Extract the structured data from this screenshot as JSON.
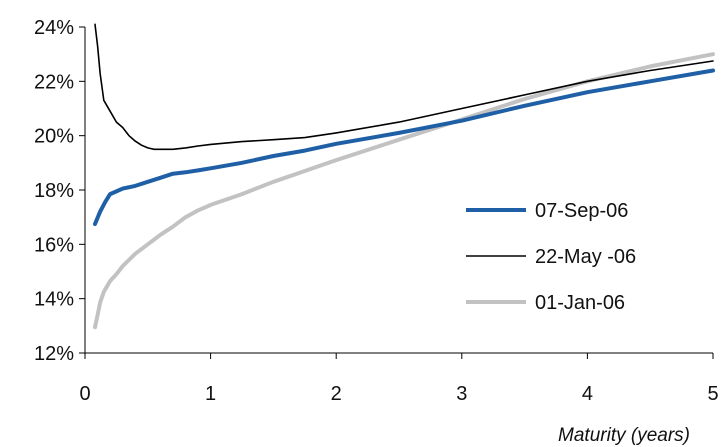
{
  "chart_data": {
    "type": "line",
    "title": "",
    "xlabel": "Maturity (years)",
    "ylabel": "",
    "xlim": [
      0,
      5
    ],
    "ylim": [
      12,
      24
    ],
    "x_ticks": [
      0,
      1,
      2,
      3,
      4,
      5
    ],
    "x_tick_labels": [
      "0",
      "1",
      "2",
      "3",
      "4",
      "5"
    ],
    "y_ticks": [
      12,
      14,
      16,
      18,
      20,
      22,
      24
    ],
    "y_tick_labels": [
      "12%",
      "14%",
      "16%",
      "18%",
      "20%",
      "22%",
      "24%"
    ],
    "grid": false,
    "legend_position": "right",
    "series": [
      {
        "name": "07-Sep-06",
        "color": "#1f5fa6",
        "x": [
          0.08,
          0.12,
          0.16,
          0.2,
          0.25,
          0.3,
          0.4,
          0.5,
          0.6,
          0.7,
          0.8,
          0.9,
          1.0,
          1.25,
          1.5,
          1.75,
          2.0,
          2.5,
          3.0,
          3.5,
          4.0,
          4.5,
          5.0
        ],
        "values": [
          16.75,
          17.2,
          17.55,
          17.85,
          17.95,
          18.05,
          18.15,
          18.3,
          18.45,
          18.6,
          18.65,
          18.72,
          18.8,
          19.0,
          19.25,
          19.45,
          19.7,
          20.1,
          20.55,
          21.1,
          21.6,
          22.0,
          22.4
        ]
      },
      {
        "name": "22-May -06",
        "color": "#000000",
        "x": [
          0.08,
          0.1,
          0.12,
          0.15,
          0.2,
          0.25,
          0.3,
          0.35,
          0.4,
          0.45,
          0.5,
          0.55,
          0.6,
          0.7,
          0.8,
          0.9,
          1.0,
          1.25,
          1.5,
          1.75,
          2.0,
          2.5,
          3.0,
          3.5,
          4.0,
          4.5,
          5.0
        ],
        "values": [
          24.1,
          23.3,
          22.3,
          21.3,
          20.9,
          20.5,
          20.3,
          20.0,
          19.8,
          19.65,
          19.55,
          19.5,
          19.5,
          19.5,
          19.55,
          19.62,
          19.68,
          19.78,
          19.85,
          19.93,
          20.1,
          20.5,
          21.0,
          21.5,
          22.0,
          22.4,
          22.75
        ]
      },
      {
        "name": "01-Jan-06",
        "color": "#c2c2c2",
        "x": [
          0.08,
          0.1,
          0.12,
          0.15,
          0.2,
          0.25,
          0.3,
          0.4,
          0.5,
          0.6,
          0.7,
          0.8,
          0.9,
          1.0,
          1.25,
          1.5,
          1.75,
          2.0,
          2.5,
          3.0,
          3.5,
          4.0,
          4.5,
          5.0
        ],
        "values": [
          12.95,
          13.4,
          13.85,
          14.25,
          14.65,
          14.9,
          15.2,
          15.65,
          16.0,
          16.35,
          16.65,
          17.0,
          17.25,
          17.45,
          17.85,
          18.3,
          18.7,
          19.1,
          19.85,
          20.6,
          21.35,
          22.0,
          22.55,
          23.0
        ]
      }
    ]
  }
}
